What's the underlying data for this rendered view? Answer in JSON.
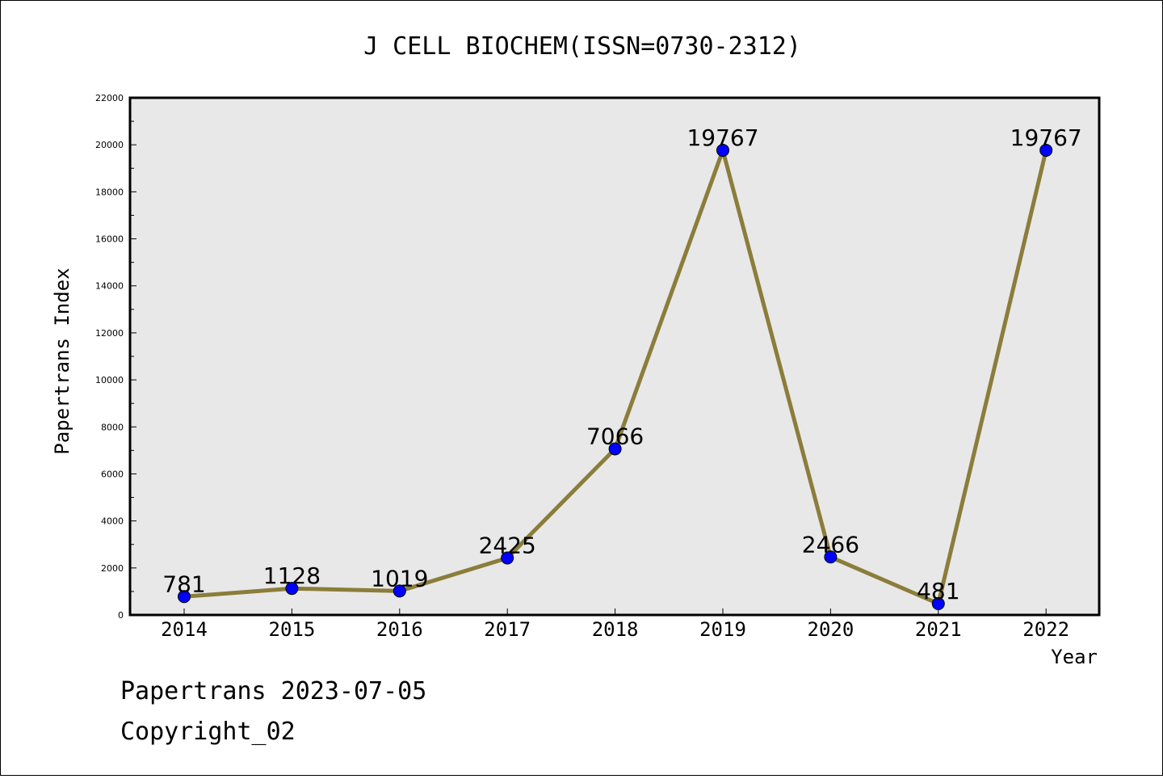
{
  "chart_data": {
    "type": "line",
    "title": "J CELL BIOCHEM(ISSN=0730-2312)",
    "xlabel": "Year",
    "ylabel": "Papertrans Index",
    "categories": [
      "2014",
      "2015",
      "2016",
      "2017",
      "2018",
      "2019",
      "2020",
      "2021",
      "2022"
    ],
    "series": [
      {
        "values": [
          781,
          1128,
          1019,
          2425,
          7066,
          19767,
          2466,
          481,
          19767
        ],
        "data_labels": [
          "781",
          "1128",
          "1019",
          "2425",
          "7066",
          "19767",
          "2466",
          "481",
          "19767"
        ]
      }
    ],
    "ylim": [
      0,
      22000
    ],
    "yticks": [
      "0",
      "2000",
      "4000",
      "6000",
      "8000",
      "10000",
      "12000",
      "14000",
      "16000",
      "18000",
      "20000",
      "22000"
    ],
    "grid": false,
    "legend": "none",
    "colors": {
      "line": "#8b7d3a",
      "marker": "#0000ff",
      "plot_background": "#e8e8e8"
    }
  },
  "footer": {
    "line1": "Papertrans 2023-07-05",
    "line2": "Copyright_02"
  }
}
